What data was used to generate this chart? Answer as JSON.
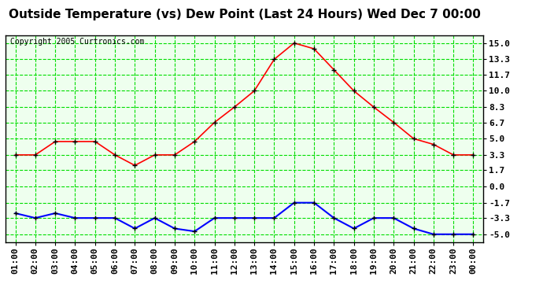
{
  "title": "Outside Temperature (vs) Dew Point (Last 24 Hours) Wed Dec 7 00:00",
  "copyright": "Copyright 2005 Curtronics.com",
  "x_labels": [
    "01:00",
    "02:00",
    "03:00",
    "04:00",
    "05:00",
    "06:00",
    "07:00",
    "08:00",
    "09:00",
    "10:00",
    "11:00",
    "12:00",
    "13:00",
    "14:00",
    "15:00",
    "16:00",
    "17:00",
    "18:00",
    "19:00",
    "20:00",
    "21:00",
    "22:00",
    "23:00",
    "00:00"
  ],
  "temp_values": [
    3.3,
    3.3,
    4.7,
    4.7,
    4.7,
    3.3,
    2.2,
    3.3,
    3.3,
    4.7,
    6.7,
    8.3,
    10.0,
    13.3,
    15.0,
    14.4,
    12.2,
    10.0,
    8.3,
    6.7,
    5.0,
    4.4,
    3.3,
    3.3
  ],
  "dew_values": [
    -2.8,
    -3.3,
    -2.8,
    -3.3,
    -3.3,
    -3.3,
    -4.4,
    -3.3,
    -4.4,
    -4.7,
    -3.3,
    -3.3,
    -3.3,
    -3.3,
    -1.7,
    -1.7,
    -3.3,
    -4.4,
    -3.3,
    -3.3,
    -4.4,
    -5.0,
    -5.0,
    -5.0
  ],
  "temp_color": "#ff0000",
  "dew_color": "#0000ff",
  "bg_color": "#ffffff",
  "plot_bg_color": "#eeffee",
  "grid_color": "#00dd00",
  "yticks": [
    15.0,
    13.3,
    11.7,
    10.0,
    8.3,
    6.7,
    5.0,
    3.3,
    1.7,
    0.0,
    -1.7,
    -3.3,
    -5.0
  ],
  "ylim": [
    -5.8,
    15.8
  ],
  "title_fontsize": 11,
  "tick_fontsize": 8,
  "copyright_fontsize": 7
}
